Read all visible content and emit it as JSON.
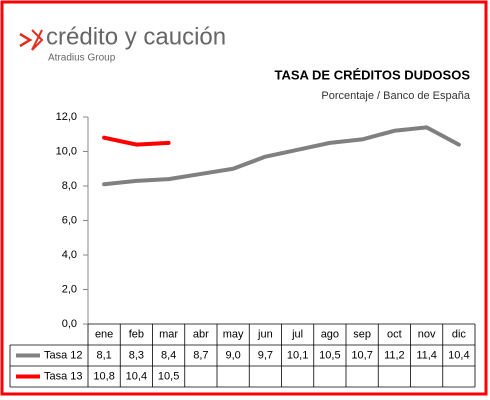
{
  "chart_data": {
    "type": "line",
    "brand": "crédito y caución",
    "brand_group": "Atradius Group",
    "title": "TASA DE CRÉDITOS DUDOSOS",
    "subtitle": "Porcentaje / Banco de España",
    "categories": [
      "ene",
      "feb",
      "mar",
      "abr",
      "may",
      "jun",
      "jul",
      "ago",
      "sep",
      "oct",
      "nov",
      "dic"
    ],
    "series": [
      {
        "name": "Tasa 12",
        "color": "#808080",
        "values": [
          8.1,
          8.3,
          8.4,
          8.7,
          9.0,
          9.7,
          10.1,
          10.5,
          10.7,
          11.2,
          11.4,
          10.4
        ],
        "value_labels": [
          "8,1",
          "8,3",
          "8,4",
          "8,7",
          "9,0",
          "9,7",
          "10,1",
          "10,5",
          "10,7",
          "11,2",
          "11,4",
          "10,4"
        ]
      },
      {
        "name": "Tasa 13",
        "color": "#ff0000",
        "values": [
          10.8,
          10.4,
          10.5,
          null,
          null,
          null,
          null,
          null,
          null,
          null,
          null,
          null
        ],
        "value_labels": [
          "10,8",
          "10,4",
          "10,5",
          null,
          null,
          null,
          null,
          null,
          null,
          null,
          null,
          null
        ]
      }
    ],
    "ylim": [
      0,
      12
    ],
    "yticks": [
      {
        "value": 0,
        "label": "0,0"
      },
      {
        "value": 2,
        "label": "2,0"
      },
      {
        "value": 4,
        "label": "4,0"
      },
      {
        "value": 6,
        "label": "6,0"
      },
      {
        "value": 8,
        "label": "8,0"
      },
      {
        "value": 10,
        "label": "10,0"
      },
      {
        "value": 12,
        "label": "12,0"
      }
    ],
    "grid": false
  }
}
